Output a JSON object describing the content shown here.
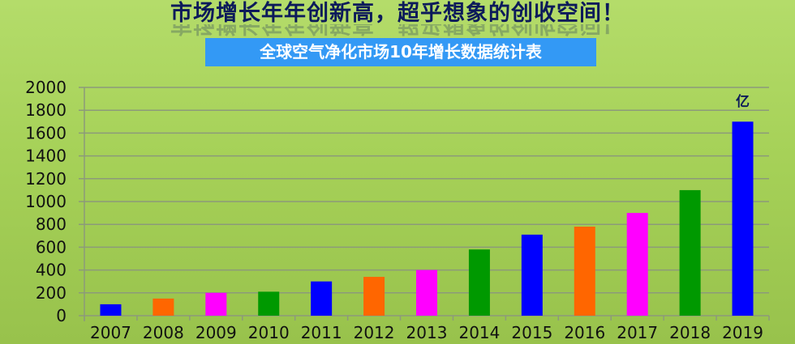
{
  "headline": "市场增长年年创新高，超乎想象的创收空间！",
  "subtitle_box": "全球空气净化市场10年增长数据统计表",
  "chart_data": {
    "type": "bar",
    "title": "全球空气净化市场10年增长数据统计表",
    "unit_label": "亿",
    "categories": [
      "2007",
      "2008",
      "2009",
      "2010",
      "2011",
      "2012",
      "2013",
      "2014",
      "2015",
      "2016",
      "2017",
      "2018",
      "2019"
    ],
    "values": [
      100,
      150,
      200,
      210,
      300,
      340,
      400,
      580,
      710,
      780,
      900,
      1100,
      1700
    ],
    "bar_colors": [
      "#0000ff",
      "#ff6600",
      "#ff00ff",
      "#009900",
      "#0000ff",
      "#ff6600",
      "#ff00ff",
      "#009900",
      "#0000ff",
      "#ff6600",
      "#ff00ff",
      "#009900",
      "#0000ff"
    ],
    "ylim": [
      0,
      2000
    ],
    "yticks": [
      0,
      200,
      400,
      600,
      800,
      1000,
      1200,
      1400,
      1600,
      1800,
      2000
    ],
    "grid": true,
    "xlabel": "",
    "ylabel": ""
  }
}
